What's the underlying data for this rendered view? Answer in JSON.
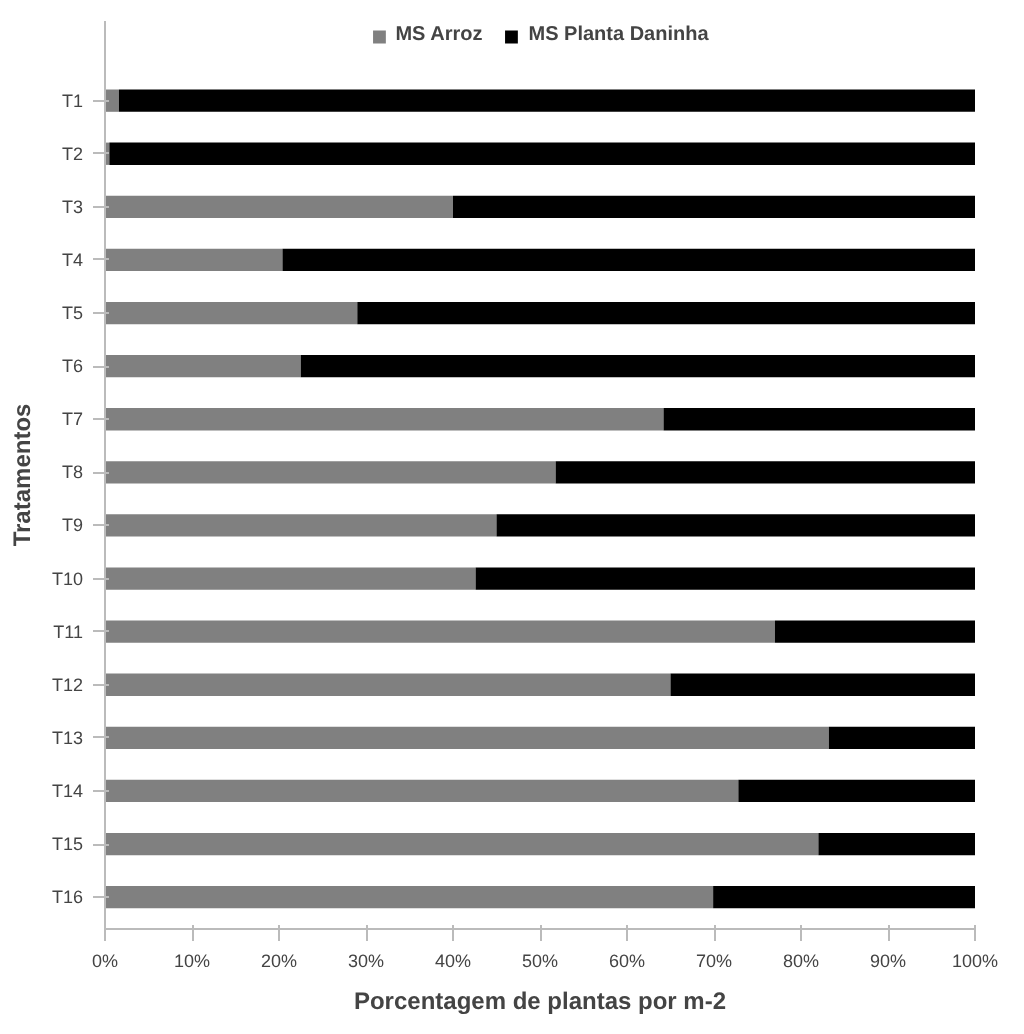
{
  "chart_data": {
    "type": "bar",
    "orientation": "horizontal",
    "stacked": true,
    "categories": [
      "T1",
      "T2",
      "T3",
      "T4",
      "T5",
      "T6",
      "T7",
      "T8",
      "T9",
      "T10",
      "T11",
      "T12",
      "T13",
      "T14",
      "T15",
      "T16"
    ],
    "series": [
      {
        "name": "MS Arroz",
        "color": "#808080",
        "values": [
          1.6,
          0.5,
          40,
          20.4,
          29,
          22.5,
          64.2,
          51.8,
          45,
          42.6,
          77,
          65,
          83.2,
          72.8,
          82,
          69.9
        ]
      },
      {
        "name": "MS Planta Daninha",
        "color": "#000000",
        "values": [
          98.4,
          99.5,
          60,
          79.6,
          71,
          77.5,
          35.8,
          48.2,
          55,
          57.4,
          23,
          35,
          16.8,
          27.2,
          18,
          30.1
        ]
      }
    ],
    "xlim": [
      0,
      100
    ],
    "xticks": [
      {
        "value": 0,
        "label": "0%"
      },
      {
        "value": 10,
        "label": "10%"
      },
      {
        "value": 20,
        "label": "20%"
      },
      {
        "value": 30,
        "label": "30%"
      },
      {
        "value": 40,
        "label": "40%"
      },
      {
        "value": 50,
        "label": "50%"
      },
      {
        "value": 60,
        "label": "60%"
      },
      {
        "value": 70,
        "label": "70%"
      },
      {
        "value": 80,
        "label": "80%"
      },
      {
        "value": 90,
        "label": "90%"
      },
      {
        "value": 100,
        "label": "100%"
      }
    ],
    "xlabel": "Porcentagem de plantas por m-2",
    "ylabel": "Tratamentos",
    "legend": "top",
    "grid": false
  }
}
